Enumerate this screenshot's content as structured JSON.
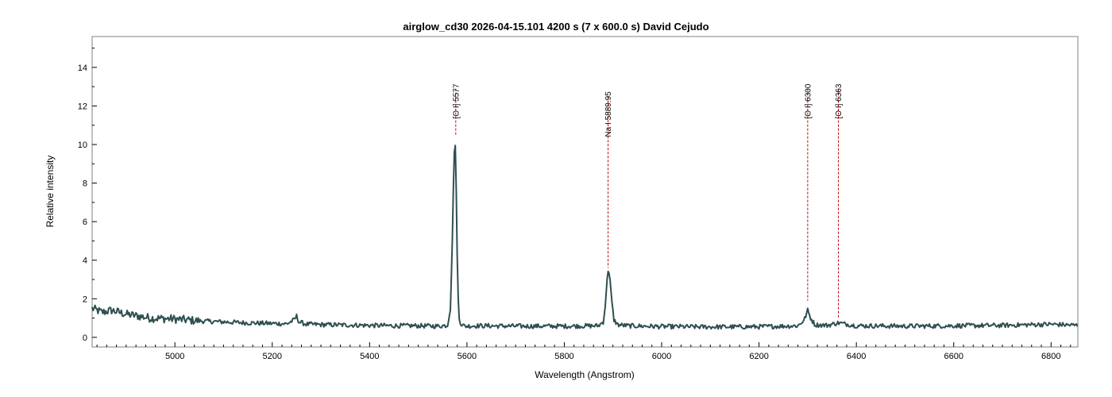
{
  "chart_data": {
    "type": "line",
    "title": "airglow_cd30   2026-04-15.101   4200 s (7 x 600.0 s)   David Cejudo",
    "xlabel": "Wavelength (Angstrom)",
    "ylabel": "Relative intensity",
    "xlim": [
      4830,
      6855
    ],
    "ylim": [
      -0.5,
      15.6
    ],
    "x_ticks": [
      5000,
      5200,
      5400,
      5600,
      5800,
      6000,
      6200,
      6400,
      6600,
      6800
    ],
    "y_ticks": [
      0,
      2,
      4,
      6,
      8,
      10,
      12,
      14
    ],
    "grid": false,
    "line_color": "#2f4f4f",
    "annotation_color": "#cc0000",
    "series": [
      {
        "x": [
          4830,
          4850,
          4870,
          4900,
          4950,
          5000,
          5050,
          5100,
          5150,
          5200,
          5230,
          5245,
          5250,
          5255,
          5270,
          5300,
          5350,
          5400,
          5450,
          5500,
          5540,
          5560,
          5566,
          5570,
          5573,
          5575,
          5577,
          5579,
          5581,
          5584,
          5588,
          5595,
          5620,
          5700,
          5800,
          5870,
          5880,
          5885,
          5888,
          5890,
          5893,
          5897,
          5902,
          5910,
          5930,
          6000,
          6100,
          6200,
          6280,
          6293,
          6300,
          6306,
          6315,
          6340,
          6363,
          6400,
          6500,
          6600,
          6700,
          6800,
          6855
        ],
        "y": [
          1.5,
          1.3,
          1.4,
          1.2,
          1.0,
          0.95,
          0.85,
          0.8,
          0.75,
          0.72,
          0.7,
          0.9,
          1.1,
          0.8,
          0.68,
          0.66,
          0.64,
          0.62,
          0.6,
          0.6,
          0.58,
          0.62,
          1.5,
          5.0,
          9.0,
          10.2,
          9.5,
          6.0,
          2.5,
          1.0,
          0.7,
          0.58,
          0.6,
          0.58,
          0.58,
          0.6,
          0.8,
          1.8,
          3.1,
          3.5,
          3.2,
          2.0,
          0.9,
          0.65,
          0.6,
          0.56,
          0.54,
          0.55,
          0.6,
          0.9,
          1.4,
          1.0,
          0.65,
          0.62,
          0.75,
          0.6,
          0.58,
          0.6,
          0.62,
          0.68,
          0.62
        ]
      }
    ],
    "annotations": [
      {
        "label": "[O I] 5577",
        "x": 5577,
        "y_top": 12.9,
        "y_bottom": 10.5
      },
      {
        "label": "Na I 5889.95",
        "x": 5889.95,
        "y_top": 12.5,
        "y_bottom": 3.6
      },
      {
        "label": "[O I] 6300",
        "x": 6300,
        "y_top": 12.9,
        "y_bottom": 1.9
      },
      {
        "label": "[O I] 6363",
        "x": 6363,
        "y_top": 12.9,
        "y_bottom": 0.95
      }
    ]
  }
}
